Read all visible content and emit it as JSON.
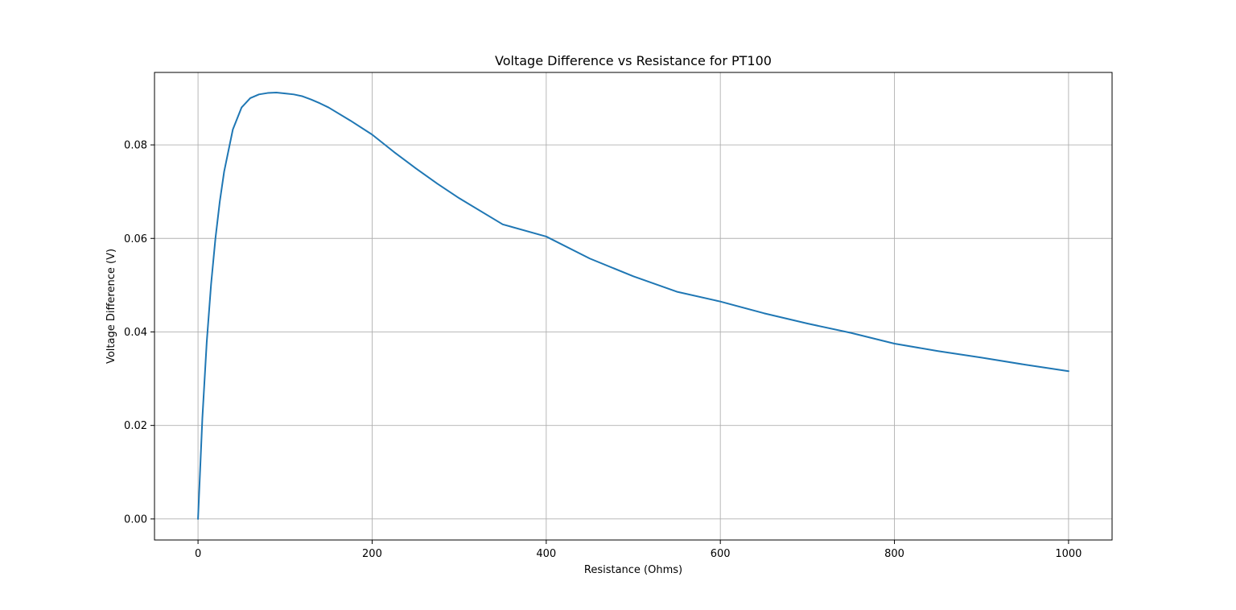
{
  "chart_data": {
    "type": "line",
    "title": "Voltage Difference vs Resistance for PT100",
    "xlabel": "Resistance (Ohms)",
    "ylabel": "Voltage Difference (V)",
    "xlim": [
      -50,
      1050
    ],
    "ylim": [
      -0.0045,
      0.0955
    ],
    "xticks": [
      0,
      200,
      400,
      600,
      800,
      1000
    ],
    "xtick_labels": [
      "0",
      "200",
      "400",
      "600",
      "800",
      "1000"
    ],
    "yticks": [
      0.0,
      0.02,
      0.04,
      0.06,
      0.08
    ],
    "ytick_labels": [
      "0.00",
      "0.02",
      "0.04",
      "0.06",
      "0.08"
    ],
    "grid": true,
    "legend": "none",
    "series": [
      {
        "color": "#1f77b4",
        "x": [
          0,
          5,
          10,
          15,
          20,
          25,
          30,
          40,
          50,
          60,
          70,
          80,
          90,
          100,
          110,
          120,
          130,
          140,
          150,
          175,
          200,
          225,
          250,
          275,
          300,
          350,
          400,
          450,
          500,
          550,
          600,
          650,
          700,
          750,
          800,
          850,
          900,
          950,
          1000
        ],
        "y": [
          0.0,
          0.0216,
          0.0378,
          0.0502,
          0.06,
          0.0679,
          0.0743,
          0.0833,
          0.088,
          0.09,
          0.0908,
          0.0911,
          0.0912,
          0.091,
          0.0908,
          0.0904,
          0.0897,
          0.0889,
          0.088,
          0.0852,
          0.0822,
          0.0785,
          0.075,
          0.0717,
          0.0686,
          0.063,
          0.0604,
          0.0557,
          0.0519,
          0.0486,
          0.0465,
          0.044,
          0.0418,
          0.0398,
          0.0375,
          0.0359,
          0.0345,
          0.033,
          0.0316
        ]
      }
    ]
  }
}
